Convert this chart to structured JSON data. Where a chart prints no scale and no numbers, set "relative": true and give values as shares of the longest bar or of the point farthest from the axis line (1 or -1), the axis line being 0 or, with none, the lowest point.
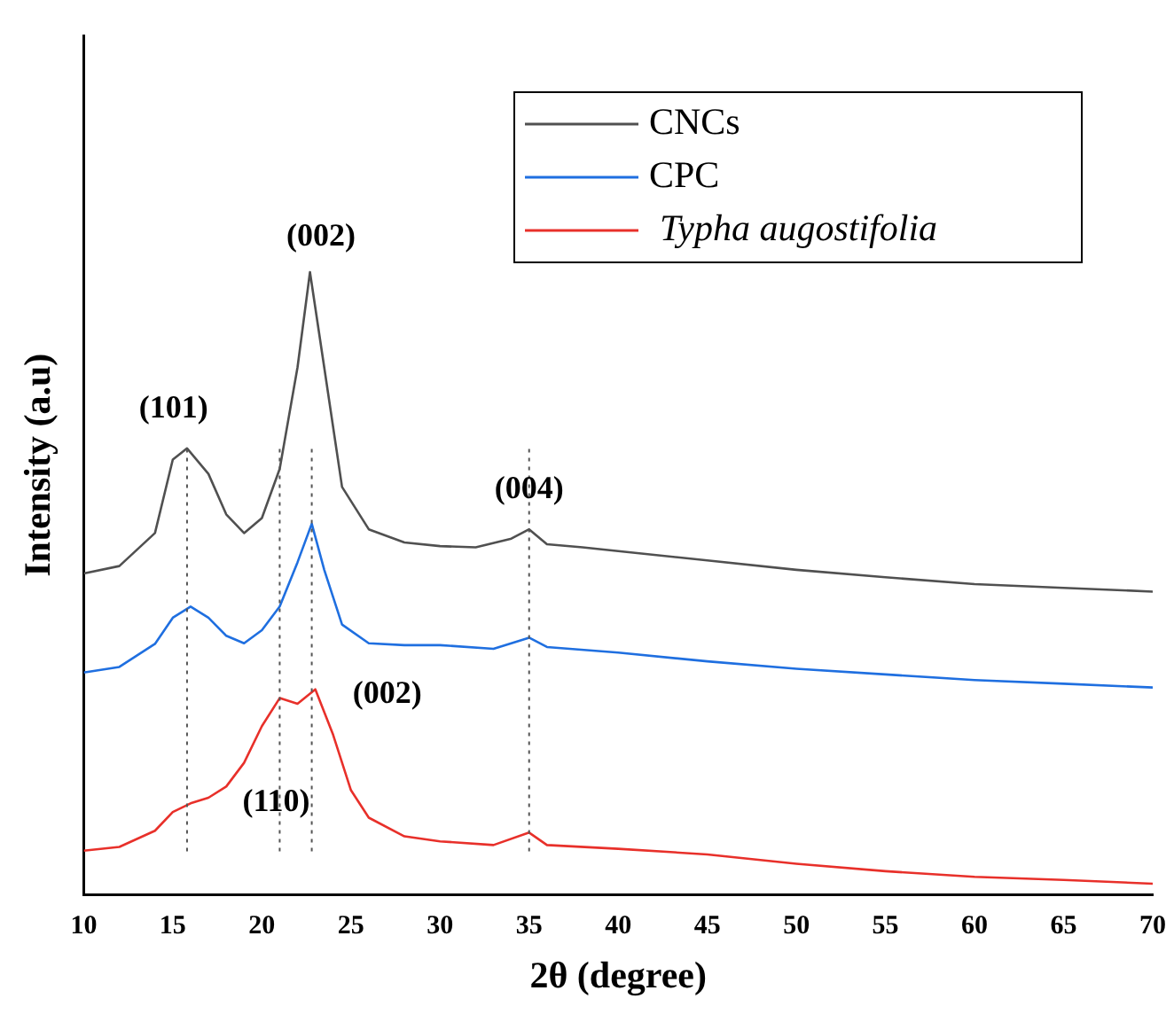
{
  "chart_data": {
    "type": "line",
    "xlabel": "2θ (degree)",
    "ylabel": "Intensity (a.u)",
    "relative": true,
    "xlim": [
      10,
      70
    ],
    "xticks": [
      10,
      15,
      20,
      25,
      30,
      35,
      40,
      45,
      50,
      55,
      60,
      65,
      70
    ],
    "legend": "top right",
    "grid": false,
    "marker": "none",
    "line_style": "solid",
    "series": [
      {
        "name": "CNCs",
        "color": "#505050",
        "x": [
          10,
          12,
          14,
          15,
          15.8,
          17,
          18,
          19,
          20,
          21,
          22,
          22.7,
          23.5,
          24.5,
          26,
          28,
          30,
          32,
          34,
          35,
          36,
          38,
          40,
          45,
          50,
          55,
          60,
          65,
          70
        ],
        "values": [
          0.516,
          0.528,
          0.581,
          0.699,
          0.717,
          0.676,
          0.611,
          0.581,
          0.605,
          0.684,
          0.847,
          1.0,
          0.847,
          0.655,
          0.587,
          0.566,
          0.56,
          0.558,
          0.572,
          0.587,
          0.563,
          0.558,
          0.552,
          0.537,
          0.522,
          0.51,
          0.499,
          0.493,
          0.487
        ]
      },
      {
        "name": "CPC",
        "color": "#1f6fe0",
        "x": [
          10,
          12,
          14,
          15,
          16,
          17,
          18,
          19,
          20,
          21,
          22,
          22.8,
          23.5,
          24.5,
          26,
          28,
          30,
          33,
          35,
          36,
          40,
          45,
          50,
          55,
          60,
          65,
          70
        ],
        "values": [
          0.357,
          0.366,
          0.403,
          0.445,
          0.463,
          0.445,
          0.416,
          0.404,
          0.425,
          0.463,
          0.534,
          0.596,
          0.522,
          0.434,
          0.404,
          0.401,
          0.401,
          0.395,
          0.413,
          0.398,
          0.389,
          0.375,
          0.363,
          0.354,
          0.345,
          0.339,
          0.333
        ]
      },
      {
        "name": "Typha augostifolia",
        "color": "#e8302a",
        "x": [
          10,
          12,
          14,
          15,
          16,
          17,
          18,
          19,
          20,
          21,
          22,
          23,
          24,
          25,
          26,
          28,
          30,
          33,
          35,
          36,
          40,
          45,
          50,
          55,
          60,
          65,
          70
        ],
        "values": [
          0.071,
          0.077,
          0.103,
          0.133,
          0.147,
          0.156,
          0.174,
          0.212,
          0.271,
          0.316,
          0.307,
          0.33,
          0.257,
          0.168,
          0.124,
          0.094,
          0.086,
          0.08,
          0.1,
          0.08,
          0.074,
          0.065,
          0.05,
          0.038,
          0.029,
          0.024,
          0.018
        ]
      }
    ],
    "ref_lines": [
      {
        "axis": "x",
        "value": 15.8,
        "line_style": "dotted",
        "color": "#555555"
      },
      {
        "axis": "x",
        "value": 21,
        "line_style": "dotted",
        "color": "#555555"
      },
      {
        "axis": "x",
        "value": 22.8,
        "line_style": "dotted",
        "color": "#555555"
      },
      {
        "axis": "x",
        "value": 35,
        "line_style": "dotted",
        "color": "#555555"
      }
    ],
    "annotations": [
      "(101)",
      "(002)",
      {
        "text": "(004)",
        "x": 35,
        "y": 0.65
      },
      "(002)",
      "(110)"
    ]
  }
}
